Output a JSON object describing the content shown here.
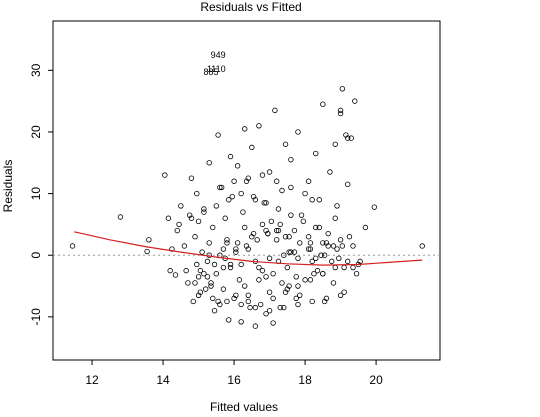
{
  "chart_data": {
    "type": "scatter",
    "title": "Residuals vs Fitted",
    "xlabel": "Fitted values",
    "ylabel": "Residuals",
    "xlim": [
      10.9,
      21.8
    ],
    "ylim": [
      -17,
      38
    ],
    "xticks": [
      "12",
      "14",
      "16",
      "18",
      "20"
    ],
    "yticks": [
      "-10",
      "0",
      "10",
      "20",
      "30"
    ],
    "reference_line": 0,
    "point_labels": [
      {
        "text": "949",
        "x": 15.55,
        "y": 32.5
      },
      {
        "text": "885",
        "x": 15.35,
        "y": 29.7
      },
      {
        "text": "1110",
        "x": 15.5,
        "y": 30.2
      }
    ],
    "smooth": {
      "x": [
        11.5,
        12.5,
        13.5,
        14.5,
        15.5,
        16.5,
        17.5,
        18.5,
        19.5,
        20.5,
        21.3
      ],
      "y": [
        3.8,
        2.5,
        1.4,
        0.5,
        -0.3,
        -1.0,
        -1.4,
        -1.6,
        -1.5,
        -1.1,
        -0.8
      ]
    },
    "points": {
      "x": [
        11.45,
        12.8,
        13.6,
        13.55,
        14.05,
        14.15,
        14.2,
        14.25,
        14.35,
        14.4,
        14.5,
        14.6,
        14.7,
        14.75,
        14.8,
        14.85,
        14.9,
        14.95,
        14.95,
        15.0,
        15.05,
        15.1,
        15.15,
        15.25,
        15.3,
        15.3,
        15.35,
        15.4,
        15.45,
        15.55,
        15.6,
        15.65,
        15.7,
        15.75,
        15.85,
        15.9,
        15.95,
        16.0,
        16.05,
        16.1,
        16.2,
        16.3,
        16.35,
        16.4,
        16.5,
        16.55,
        16.6,
        16.7,
        16.8,
        16.85,
        16.9,
        17.0,
        17.05,
        17.1,
        17.15,
        17.2,
        17.3,
        17.35,
        17.45,
        17.5,
        17.6,
        17.7,
        17.75,
        17.8,
        17.9,
        18.0,
        18.1,
        18.2,
        18.25,
        18.3,
        18.4,
        18.5,
        18.55,
        18.6,
        18.7,
        18.8,
        18.85,
        18.9,
        19.0,
        19.05,
        19.1,
        19.15,
        19.2,
        19.25,
        19.3,
        19.4,
        19.5,
        19.7,
        19.95,
        21.3,
        15.2,
        15.5,
        15.6,
        15.8,
        16.15,
        16.4,
        16.7,
        16.95,
        17.25,
        17.55,
        17.75,
        18.15,
        18.35,
        18.65,
        18.95,
        19.05,
        19.2,
        19.0,
        18.85,
        18.5,
        17.2,
        17.35,
        16.25,
        17.0,
        16.6,
        15.9,
        15.55,
        16.45,
        16.8,
        17.45,
        17.55,
        17.85,
        18.1,
        18.55,
        15.25,
        15.05,
        15.8,
        16.3,
        16.9,
        17.6,
        18.3,
        18.8,
        19.35,
        19.55,
        14.9,
        15.15,
        15.45,
        15.75,
        16.05,
        16.35,
        16.65,
        16.95,
        17.25,
        17.55,
        17.85,
        18.15,
        18.45,
        18.75,
        19.1,
        19.45,
        14.65,
        15.0,
        15.35,
        15.7,
        16.05,
        16.4,
        16.75,
        17.1,
        17.45,
        17.8,
        18.15,
        18.5,
        18.85,
        19.2,
        14.45,
        14.8,
        15.15,
        15.5,
        15.85,
        16.2,
        16.55,
        16.9,
        17.25,
        17.6,
        17.95,
        18.3,
        18.65,
        19.0,
        19.35,
        15.0,
        15.4,
        15.8,
        16.2,
        16.6,
        17.0,
        17.4,
        17.8,
        18.2,
        18.6,
        19.0,
        15.6,
        16.0,
        16.4,
        16.8,
        17.2,
        17.6,
        18.0,
        18.4,
        15.3,
        15.7,
        16.1,
        16.5,
        16.9,
        17.3,
        17.7,
        18.1,
        18.5,
        18.9,
        16.3,
        16.7,
        17.1,
        17.5,
        15.9,
        16.2,
        16.6,
        17.0,
        17.4,
        17.8,
        18.2
      ],
      "y": [
        1.5,
        6.2,
        2.5,
        0.6,
        13.0,
        6.0,
        -2.5,
        1.0,
        -3.2,
        4.0,
        8.0,
        1.5,
        -4.5,
        6.5,
        12.5,
        -7.5,
        3.0,
        10.0,
        -1.5,
        5.5,
        -6.0,
        0.5,
        7.5,
        -3.5,
        2.0,
        15.0,
        -5.0,
        4.5,
        -9.0,
        19.5,
        -8.0,
        11.0,
        -2.0,
        6.0,
        -10.5,
        16.0,
        9.5,
        -7.0,
        1.0,
        14.5,
        -10.8,
        20.5,
        12.0,
        -6.5,
        17.5,
        3.5,
        -11.5,
        21.0,
        -2.5,
        8.5,
        -9.5,
        13.5,
        5.5,
        -11.0,
        23.5,
        2.5,
        -8.5,
        10.5,
        18.0,
        -5.5,
        15.5,
        0.5,
        -7.0,
        20.0,
        6.5,
        -4.0,
        12.0,
        9.0,
        -3.0,
        16.5,
        4.5,
        24.5,
        -7.5,
        2.0,
        13.5,
        -4.5,
        18.0,
        8.0,
        23.0,
        1.5,
        -6.0,
        19.5,
        11.5,
        3.0,
        19.0,
        25.0,
        -1.5,
        4.5,
        7.8,
        1.5,
        -5.5,
        -3.0,
        0.0,
        2.5,
        -4.0,
        1.0,
        -2.0,
        3.5,
        -1.0,
        0.5,
        -3.5,
        2.0,
        -2.5,
        1.5,
        -0.5,
        27.0,
        19.0,
        23.5,
        6.0,
        -3.0,
        4.0,
        -4.5,
        7.0,
        -6.0,
        9.0,
        -1.5,
        -7.5,
        -8.5,
        5.0,
        3.0,
        -5.0,
        -6.5,
        1.0,
        0.0,
        -1.0,
        -2.5,
        2.0,
        4.5,
        -3.5,
        0.5,
        -0.5,
        1.5,
        -2.0,
        -1.0,
        -4.5,
        -3.0,
        -1.5,
        -0.5,
        0.5,
        1.5,
        2.5,
        3.5,
        4.0,
        3.0,
        2.0,
        1.0,
        0.0,
        -1.0,
        -2.0,
        -3.0,
        -2.5,
        -3.5,
        -4.5,
        -5.5,
        -6.5,
        -7.5,
        -8.0,
        -7.0,
        -6.0,
        -5.0,
        -4.0,
        -3.0,
        -2.0,
        -1.0,
        5.0,
        6.0,
        7.0,
        8.0,
        9.0,
        10.0,
        9.5,
        8.5,
        7.5,
        6.5,
        5.5,
        4.5,
        3.5,
        2.5,
        1.5,
        -6.5,
        -7.0,
        -7.5,
        -8.0,
        -8.5,
        -9.0,
        -8.5,
        -8.0,
        -7.5,
        -7.0,
        -6.5,
        11.0,
        12.0,
        12.5,
        13.0,
        12.0,
        11.0,
        10.0,
        9.0,
        0.0,
        1.0,
        2.0,
        3.0,
        4.0,
        5.0,
        4.0,
        3.0,
        2.0,
        1.0,
        -5.0,
        -4.0,
        -3.0,
        -2.0,
        -2.0,
        -1.5,
        -1.0,
        -0.5,
        0.0,
        -0.5,
        -1.0
      ]
    }
  }
}
